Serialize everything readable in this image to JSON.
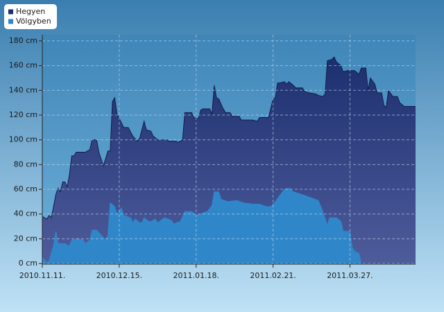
{
  "chart_data": {
    "type": "area",
    "xlim": [
      "2010-11-11",
      "2011-04-25"
    ],
    "xticks": [
      {
        "value": "2010-11-11",
        "label": "2010.11.11."
      },
      {
        "value": "2010-12-15",
        "label": "2010.12.15."
      },
      {
        "value": "2011-01-18",
        "label": "2011.01.18."
      },
      {
        "value": "2011-02-21",
        "label": "2011.02.21."
      },
      {
        "value": "2011-03-27",
        "label": "2011.03.27."
      }
    ],
    "ylim": [
      -0.5,
      185
    ],
    "yticks": [
      {
        "value": 0,
        "label": "0 cm"
      },
      {
        "value": 20,
        "label": "20 cm"
      },
      {
        "value": 40,
        "label": "40 cm"
      },
      {
        "value": 60,
        "label": "60 cm"
      },
      {
        "value": 80,
        "label": "80 cm"
      },
      {
        "value": 100,
        "label": "100 cm"
      },
      {
        "value": 120,
        "label": "120 cm"
      },
      {
        "value": 140,
        "label": "140 cm"
      },
      {
        "value": 160,
        "label": "160 cm"
      },
      {
        "value": 180,
        "label": "180 cm"
      }
    ],
    "grid": true,
    "legend": "top-left",
    "series": [
      {
        "name": "Hegyen",
        "color": "#1c2f6e",
        "x": [
          "2010-11-11",
          "2010-11-13",
          "2010-11-14",
          "2010-11-15",
          "2010-11-17",
          "2010-11-18",
          "2010-11-19",
          "2010-11-20",
          "2010-11-21",
          "2010-11-22",
          "2010-11-23",
          "2010-11-24",
          "2010-11-25",
          "2010-11-26",
          "2010-11-30",
          "2010-12-02",
          "2010-12-03",
          "2010-12-05",
          "2010-12-06",
          "2010-12-08",
          "2010-12-10",
          "2010-12-11",
          "2010-12-12",
          "2010-12-13",
          "2010-12-14",
          "2010-12-17",
          "2010-12-19",
          "2010-12-21",
          "2010-12-23",
          "2010-12-24",
          "2010-12-26",
          "2010-12-27",
          "2010-12-29",
          "2010-12-30",
          "2011-01-01",
          "2011-01-05",
          "2011-01-06",
          "2011-01-09",
          "2011-01-10",
          "2011-01-12",
          "2011-01-13",
          "2011-01-16",
          "2011-01-17",
          "2011-01-19",
          "2011-01-20",
          "2011-01-21",
          "2011-01-24",
          "2011-01-25",
          "2011-01-26",
          "2011-01-27",
          "2011-01-28",
          "2011-01-30",
          "2011-01-31",
          "2011-02-02",
          "2011-02-03",
          "2011-02-06",
          "2011-02-07",
          "2011-02-12",
          "2011-02-14",
          "2011-02-15",
          "2011-02-19",
          "2011-02-21",
          "2011-02-22",
          "2011-02-23",
          "2011-02-24",
          "2011-02-26",
          "2011-02-27",
          "2011-02-28",
          "2011-03-02",
          "2011-03-03",
          "2011-03-06",
          "2011-03-07",
          "2011-03-09",
          "2011-03-12",
          "2011-03-13",
          "2011-03-15",
          "2011-03-16",
          "2011-03-17",
          "2011-03-19",
          "2011-03-20",
          "2011-03-21",
          "2011-03-23",
          "2011-03-24",
          "2011-03-26",
          "2011-03-29",
          "2011-03-31",
          "2011-04-01",
          "2011-04-03",
          "2011-04-04",
          "2011-04-05",
          "2011-04-07",
          "2011-04-08",
          "2011-04-10",
          "2011-04-11",
          "2011-04-12",
          "2011-04-13",
          "2011-04-15",
          "2011-04-17",
          "2011-04-18",
          "2011-04-20",
          "2011-04-25"
        ],
        "values": [
          38,
          36,
          39,
          37,
          56,
          61,
          58,
          66,
          66,
          62,
          72,
          87,
          87,
          90,
          90,
          92,
          100,
          100,
          90,
          79,
          91,
          91,
          131,
          134,
          121,
          110,
          110,
          103,
          99,
          101,
          115,
          108,
          107,
          103,
          100,
          100,
          99,
          99,
          98,
          100,
          122,
          122,
          118,
          117,
          124,
          125,
          125,
          121,
          144,
          134,
          133,
          125,
          122,
          122,
          119,
          119,
          116,
          116,
          115,
          118,
          118,
          133,
          134,
          146,
          146,
          147,
          145,
          147,
          144,
          142,
          142,
          139,
          138,
          137,
          136,
          135,
          137,
          164,
          165,
          167,
          163,
          160,
          155,
          156,
          156,
          153,
          158,
          158,
          140,
          150,
          145,
          138,
          138,
          128,
          126,
          140,
          135,
          135,
          130,
          127,
          127
        ]
      },
      {
        "name": "Völgyben",
        "color": "#2f87c9",
        "x": [
          "2010-11-11",
          "2010-11-12",
          "2010-11-13",
          "2010-11-14",
          "2010-11-16",
          "2010-11-17",
          "2010-11-18",
          "2010-11-21",
          "2010-11-23",
          "2010-11-24",
          "2010-11-27",
          "2010-11-29",
          "2010-11-30",
          "2010-12-02",
          "2010-12-03",
          "2010-12-05",
          "2010-12-07",
          "2010-12-09",
          "2010-12-10",
          "2010-12-11",
          "2010-12-13",
          "2010-12-14",
          "2010-12-16",
          "2010-12-17",
          "2010-12-20",
          "2010-12-21",
          "2010-12-22",
          "2010-12-24",
          "2010-12-25",
          "2010-12-26",
          "2010-12-28",
          "2010-12-29",
          "2010-12-31",
          "2011-01-01",
          "2011-01-04",
          "2011-01-07",
          "2011-01-08",
          "2011-01-11",
          "2011-01-12",
          "2011-01-13",
          "2011-01-16",
          "2011-01-18",
          "2011-01-20",
          "2011-01-21",
          "2011-01-23",
          "2011-01-25",
          "2011-01-26",
          "2011-01-28",
          "2011-01-29",
          "2011-02-01",
          "2011-02-05",
          "2011-02-08",
          "2011-02-12",
          "2011-02-15",
          "2011-02-18",
          "2011-02-20",
          "2011-02-22",
          "2011-02-24",
          "2011-02-26",
          "2011-02-28",
          "2011-03-02",
          "2011-03-07",
          "2011-03-13",
          "2011-03-15",
          "2011-03-17",
          "2011-03-18",
          "2011-03-21",
          "2011-03-23",
          "2011-03-24",
          "2011-03-27",
          "2011-03-28",
          "2011-03-29",
          "2011-03-31",
          "2011-04-01",
          "2011-04-25"
        ],
        "values": [
          5,
          3,
          1,
          2,
          15,
          26,
          16,
          16,
          14,
          19,
          20,
          19,
          16,
          19,
          27,
          27,
          23,
          19,
          23,
          49,
          46,
          40,
          45,
          39,
          37,
          33,
          36,
          33,
          33,
          37,
          34,
          34,
          36,
          33,
          37,
          35,
          32,
          34,
          38,
          42,
          42,
          39,
          40,
          41,
          42,
          47,
          58,
          58,
          52,
          50,
          51,
          49,
          48,
          48,
          46,
          46,
          50,
          55,
          60,
          61,
          58,
          55,
          51,
          42,
          31,
          37,
          37,
          34,
          26,
          26,
          13,
          10,
          8,
          0,
          0
        ]
      }
    ]
  }
}
